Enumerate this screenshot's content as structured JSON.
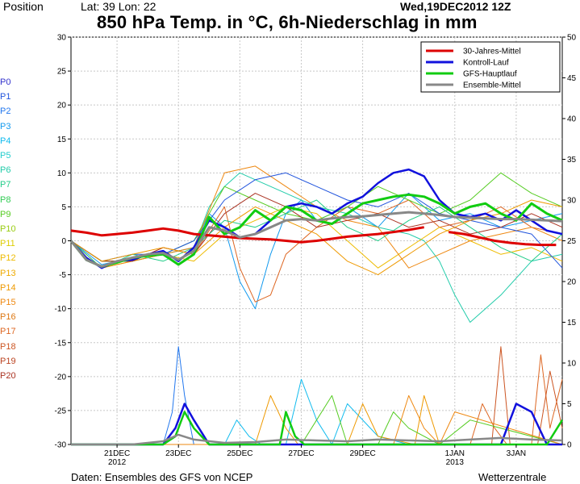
{
  "header": {
    "position_label": "Position",
    "coords": "Lat: 39 Lon: 22",
    "datetime": "Wed,19DEC2012 12Z",
    "title": "850 hPa Temp. in °C, 6h-Niederschlag in mm"
  },
  "footer": {
    "source": "Daten: Ensembles des GFS von NCEP",
    "brand": "Wetterzentrale"
  },
  "members": [
    {
      "label": "P0",
      "color": "#3333cc"
    },
    {
      "label": "P1",
      "color": "#2255dd"
    },
    {
      "label": "P2",
      "color": "#2277ee"
    },
    {
      "label": "P3",
      "color": "#1199ee"
    },
    {
      "label": "P4",
      "color": "#11bbee"
    },
    {
      "label": "P5",
      "color": "#22cccc"
    },
    {
      "label": "P6",
      "color": "#22ccaa"
    },
    {
      "label": "P7",
      "color": "#22cc88"
    },
    {
      "label": "P8",
      "color": "#33cc55"
    },
    {
      "label": "P9",
      "color": "#55cc22"
    },
    {
      "label": "P10",
      "color": "#99cc11"
    },
    {
      "label": "P11",
      "color": "#ddcc00"
    },
    {
      "label": "P12",
      "color": "#eebb00"
    },
    {
      "label": "P13",
      "color": "#eeaa00"
    },
    {
      "label": "P14",
      "color": "#ee9900"
    },
    {
      "label": "P15",
      "color": "#ee8811"
    },
    {
      "label": "P16",
      "color": "#dd7711"
    },
    {
      "label": "P17",
      "color": "#dd6622"
    },
    {
      "label": "P18",
      "color": "#cc5522"
    },
    {
      "label": "P19",
      "color": "#bb4422"
    },
    {
      "label": "P20",
      "color": "#aa3322"
    }
  ],
  "chart_data": {
    "type": "line",
    "x_unit": "days from 19DEC2012 12Z",
    "xlim": [
      0,
      16
    ],
    "x_ticks": [
      {
        "x": 1.5,
        "label": "21DEC",
        "sub": "2012"
      },
      {
        "x": 3.5,
        "label": "23DEC",
        "sub": ""
      },
      {
        "x": 5.5,
        "label": "25DEC",
        "sub": ""
      },
      {
        "x": 7.5,
        "label": "27DEC",
        "sub": ""
      },
      {
        "x": 9.5,
        "label": "29DEC",
        "sub": ""
      },
      {
        "x": 12.5,
        "label": "1JAN",
        "sub": "2013"
      },
      {
        "x": 14.5,
        "label": "3JAN",
        "sub": ""
      }
    ],
    "y_left_lim": [
      -30,
      30
    ],
    "y_left_ticks": [
      -30,
      -25,
      -20,
      -15,
      -10,
      -5,
      0,
      5,
      10,
      15,
      20,
      25,
      30
    ],
    "y_right_lim": [
      0,
      50
    ],
    "y_right_ticks": [
      0,
      5,
      10,
      15,
      20,
      25,
      30,
      35,
      40,
      45,
      50
    ],
    "grid": true,
    "legend_position": "top-right",
    "legend": [
      {
        "name": "30-Jahres-Mittel",
        "color": "#dd0000"
      },
      {
        "name": "Kontroll-Lauf",
        "color": "#1111dd"
      },
      {
        "name": "GFS-Hauptlauf",
        "color": "#11cc11"
      },
      {
        "name": "Ensemble-Mittel",
        "color": "#888888"
      }
    ],
    "series": [
      {
        "name": "30-Jahres-Mittel",
        "color": "#dd0000",
        "width": 3,
        "x": [
          0,
          0.5,
          1,
          1.5,
          2,
          2.5,
          3,
          3.5,
          4,
          4.5,
          5,
          5.5,
          6,
          6.5,
          7,
          7.5,
          8,
          8.5,
          9,
          9.5,
          10,
          10.5,
          11,
          11.5
        ],
        "y": [
          1.5,
          1.2,
          0.8,
          1.0,
          1.2,
          1.5,
          1.8,
          1.5,
          1.0,
          0.8,
          0.6,
          0.4,
          0.3,
          0.2,
          0.0,
          -0.2,
          0.0,
          0.3,
          0.6,
          0.8,
          1.0,
          1.3,
          1.6,
          2.0
        ]
      },
      {
        "name": "30-Jahres-Mittel",
        "color": "#dd0000",
        "width": 3,
        "x": [
          12.3,
          12.8,
          13.3,
          13.8,
          14.3,
          14.8,
          15.3,
          15.8
        ],
        "y": [
          1.3,
          1.0,
          0.5,
          0.0,
          -0.3,
          -0.5,
          -0.6,
          -0.6
        ]
      },
      {
        "name": "Kontroll-Lauf",
        "color": "#1111dd",
        "width": 2.5,
        "x": [
          0,
          0.5,
          1,
          1.5,
          2,
          2.5,
          3,
          3.5,
          4,
          4.5,
          5,
          5.5,
          6,
          6.5,
          7,
          7.5,
          8,
          8.5,
          9,
          9.5,
          10,
          10.5,
          11,
          11.5,
          12,
          12.5,
          13,
          13.5,
          14,
          14.5,
          15,
          15.5,
          16
        ],
        "y": [
          0,
          -2.5,
          -4.0,
          -3.0,
          -2.8,
          -2.0,
          -1.5,
          -3.0,
          -1.0,
          3.0,
          2.0,
          0.5,
          1.0,
          3.0,
          5.0,
          5.5,
          5.0,
          4.0,
          5.5,
          6.5,
          8.5,
          10.0,
          10.5,
          9.5,
          6.0,
          4.0,
          3.5,
          4.0,
          3.0,
          4.5,
          3.0,
          1.5,
          1.0
        ]
      },
      {
        "name": "GFS-Hauptlauf",
        "color": "#11cc11",
        "width": 3,
        "x": [
          0,
          0.5,
          1,
          1.5,
          2,
          2.5,
          3,
          3.5,
          4,
          4.5,
          5,
          5.5,
          6,
          6.5,
          7,
          7.5,
          8,
          8.5,
          9,
          9.5,
          10,
          10.5,
          11,
          11.5,
          12,
          12.5,
          13,
          13.5,
          14,
          14.5,
          15,
          15.5,
          16
        ],
        "y": [
          0,
          -2.8,
          -3.8,
          -3.2,
          -2.5,
          -2.2,
          -2.0,
          -3.5,
          -2.0,
          3.5,
          1.0,
          2.0,
          4.5,
          3.0,
          5.0,
          4.5,
          3.0,
          2.5,
          4.0,
          5.5,
          6.0,
          6.5,
          6.8,
          6.5,
          5.5,
          4.0,
          5.0,
          5.5,
          4.0,
          3.0,
          5.5,
          4.0,
          3.0
        ]
      },
      {
        "name": "Ensemble-Mittel",
        "color": "#888888",
        "width": 3,
        "x": [
          0,
          0.5,
          1,
          1.5,
          2,
          2.5,
          3,
          3.5,
          4,
          4.5,
          5,
          5.5,
          6,
          6.5,
          7,
          7.5,
          8,
          8.5,
          9,
          9.5,
          10,
          10.5,
          11,
          11.5,
          12,
          12.5,
          13,
          13.5,
          14,
          14.5,
          15,
          15.5,
          16
        ],
        "y": [
          0,
          -2.8,
          -3.8,
          -3.0,
          -2.5,
          -2.0,
          -1.8,
          -2.8,
          -1.5,
          2.0,
          1.5,
          0.5,
          1.0,
          2.0,
          3.0,
          3.2,
          3.0,
          3.3,
          3.5,
          3.6,
          3.8,
          4.0,
          4.2,
          4.0,
          3.8,
          3.5,
          3.4,
          3.3,
          3.2,
          3.2,
          3.1,
          3.0,
          2.9
        ]
      },
      {
        "name": "P3",
        "color": "#1199ee",
        "width": 1,
        "x": [
          0,
          1,
          2,
          3,
          4,
          4.5,
          5,
          5.5,
          6,
          6.5,
          7,
          7.5,
          8,
          9,
          10,
          11,
          12,
          13,
          14,
          15,
          16
        ],
        "y": [
          0,
          -3.5,
          -2.5,
          -2,
          -1,
          4,
          2,
          -6,
          -10,
          -2,
          4,
          6,
          3,
          5,
          2,
          7,
          3,
          4,
          2,
          3,
          4
        ]
      },
      {
        "name": "P6",
        "color": "#22ccaa",
        "width": 1,
        "x": [
          0,
          1,
          2,
          3,
          4,
          4.5,
          5,
          5.5,
          6,
          7,
          8,
          9,
          10,
          11,
          11.5,
          12,
          12.5,
          13,
          14,
          15,
          16
        ],
        "y": [
          0,
          -3,
          -3,
          -2,
          -1,
          5,
          8,
          10,
          9,
          7,
          5,
          4,
          2,
          1,
          0,
          -3,
          -8,
          -12,
          -8,
          -3,
          -2
        ]
      },
      {
        "name": "P17",
        "color": "#dd6622",
        "width": 1,
        "x": [
          0,
          1,
          2,
          3,
          4,
          5,
          5.5,
          6,
          6.5,
          7,
          8,
          9,
          10,
          11,
          12,
          13,
          14,
          15,
          16
        ],
        "y": [
          0,
          -3,
          -3,
          -1,
          -2,
          5,
          -4,
          -9,
          -8,
          -2,
          2,
          5,
          4,
          6,
          2,
          3,
          5,
          2,
          1
        ]
      },
      {
        "name": "P12",
        "color": "#eebb00",
        "width": 1,
        "x": [
          0,
          1,
          2,
          3,
          4,
          5,
          6,
          7,
          8,
          9,
          10,
          11,
          12,
          13,
          14,
          15,
          16
        ],
        "y": [
          0,
          -4,
          -3,
          -2,
          -3,
          1,
          3,
          5,
          4,
          0,
          -4,
          -1,
          2,
          0,
          -2,
          -1,
          -3
        ]
      },
      {
        "name": "P9",
        "color": "#55cc22",
        "width": 1,
        "x": [
          0,
          1,
          2,
          3,
          4,
          5,
          6,
          7,
          8,
          9,
          10,
          11,
          12,
          13,
          14,
          15,
          16
        ],
        "y": [
          0,
          -3,
          -3,
          -2,
          0,
          8,
          6,
          4,
          3,
          5,
          8,
          6,
          4,
          6,
          10,
          7,
          5
        ]
      },
      {
        "name": "P15",
        "color": "#ee8811",
        "width": 1,
        "x": [
          0,
          1,
          2,
          3,
          4,
          5,
          6,
          7,
          8,
          9,
          10,
          11,
          12,
          13,
          14,
          15,
          16
        ],
        "y": [
          0,
          -4,
          -3,
          -2,
          -1,
          10,
          11,
          8,
          5,
          3,
          2,
          -4,
          -2,
          0,
          1,
          2,
          0
        ]
      },
      {
        "name": "P1",
        "color": "#2255dd",
        "width": 1,
        "x": [
          0,
          1,
          2,
          3,
          4,
          5,
          6,
          7,
          8,
          9,
          10,
          11,
          12,
          13,
          14,
          15,
          16
        ],
        "y": [
          0,
          -3,
          -2,
          -2,
          0,
          6,
          9,
          10,
          8,
          6,
          5,
          7,
          4,
          3,
          2,
          1,
          -4
        ]
      },
      {
        "name": "P20",
        "color": "#aa3322",
        "width": 1,
        "x": [
          0,
          1,
          2,
          3,
          4,
          5,
          6,
          7,
          8,
          9,
          10,
          11,
          12,
          13,
          14,
          15,
          16
        ],
        "y": [
          0,
          -3,
          -3,
          -1,
          -2,
          4,
          7,
          5,
          2,
          3,
          4,
          2,
          3,
          1,
          2,
          4,
          2
        ]
      },
      {
        "name": "P7",
        "color": "#22cc88",
        "width": 1,
        "x": [
          0,
          1,
          2,
          3,
          4,
          5,
          6,
          7,
          8,
          9,
          10,
          11,
          12,
          13,
          14,
          15,
          16
        ],
        "y": [
          0,
          -4,
          -2,
          -3,
          -1,
          3,
          2,
          4,
          6,
          2,
          0,
          3,
          5,
          2,
          -1,
          -3,
          1
        ]
      },
      {
        "name": "P14",
        "color": "#ee9900",
        "width": 1,
        "x": [
          0,
          1,
          2,
          3,
          4,
          5,
          6,
          7,
          8,
          9,
          10,
          11,
          12,
          13,
          14,
          15,
          16
        ],
        "y": [
          0,
          -3,
          -2,
          -1,
          -2,
          2,
          5,
          3,
          1,
          -3,
          -5,
          -2,
          1,
          3,
          4,
          6,
          5
        ]
      }
    ],
    "precip_series": [
      {
        "name": "Kontroll-Lauf",
        "color": "#1111dd",
        "width": 2.5,
        "x": [
          0,
          3,
          3.4,
          3.7,
          4,
          4.5,
          9,
          13,
          14,
          14.5,
          15,
          15.5,
          16
        ],
        "y": [
          0,
          0,
          2,
          5,
          3,
          0,
          0,
          0,
          0,
          5,
          4,
          0,
          0
        ]
      },
      {
        "name": "GFS-Hauptlauf",
        "color": "#11cc11",
        "width": 2.5,
        "x": [
          0,
          3,
          3.4,
          3.7,
          4,
          4.5,
          6,
          6.8,
          7,
          7.3,
          7.6,
          8,
          12,
          15.5,
          16
        ],
        "y": [
          0,
          0,
          1,
          4,
          2,
          0,
          0,
          0,
          4,
          1,
          0,
          0,
          0,
          0,
          3
        ]
      },
      {
        "name": "Ensemble-Mittel",
        "color": "#888888",
        "width": 2.5,
        "x": [
          0,
          2,
          3,
          3.5,
          4,
          5,
          6,
          7,
          8,
          9,
          10,
          11,
          12,
          13,
          14,
          15,
          16
        ],
        "y": [
          0,
          0,
          0.4,
          1.2,
          0.6,
          0.2,
          0.3,
          0.6,
          0.5,
          0.4,
          0.6,
          0.5,
          0.4,
          0.6,
          0.8,
          0.6,
          0.5
        ]
      },
      {
        "name": "P2",
        "color": "#2277ee",
        "width": 1,
        "x": [
          0,
          3,
          3.3,
          3.5,
          3.7,
          4,
          12,
          16
        ],
        "y": [
          0,
          0,
          4,
          12,
          6,
          0,
          0,
          0
        ]
      },
      {
        "name": "P17",
        "color": "#dd6622",
        "width": 1,
        "x": [
          0,
          13,
          13.4,
          13.8,
          14.2,
          15,
          15.3,
          15.6,
          16
        ],
        "y": [
          0,
          0,
          5,
          2,
          0,
          0,
          11,
          2,
          8
        ]
      },
      {
        "name": "P18",
        "color": "#cc5522",
        "width": 1,
        "x": [
          0,
          13.7,
          14.0,
          14.3,
          15.2,
          15.6,
          16
        ],
        "y": [
          0,
          0,
          12,
          0,
          0,
          9,
          2
        ]
      },
      {
        "name": "P4",
        "color": "#11bbee",
        "width": 1,
        "x": [
          0,
          5,
          5.4,
          5.8,
          6.2,
          7,
          7.5,
          8,
          8.5,
          9,
          10,
          11,
          16
        ],
        "y": [
          0,
          0,
          3,
          1,
          0,
          0,
          8,
          3,
          0,
          5,
          1,
          0,
          0
        ]
      },
      {
        "name": "P14",
        "color": "#ee9900",
        "width": 1,
        "x": [
          0,
          6,
          6.5,
          7,
          7.4,
          8,
          9,
          9.5,
          10,
          11.2,
          11.5,
          12,
          16
        ],
        "y": [
          0,
          0,
          6,
          2,
          0,
          0,
          0,
          5,
          1,
          0,
          6,
          0,
          0
        ]
      },
      {
        "name": "P9",
        "color": "#55cc22",
        "width": 1,
        "x": [
          0,
          7.5,
          8,
          8.5,
          9,
          10,
          10.5,
          11,
          12,
          13,
          16
        ],
        "y": [
          0,
          0,
          3,
          6,
          0,
          0,
          4,
          2,
          0,
          3,
          0
        ]
      },
      {
        "name": "P15",
        "color": "#ee8811",
        "width": 1,
        "x": [
          0,
          10.5,
          11,
          11.5,
          12,
          12.5,
          16
        ],
        "y": [
          0,
          0,
          6,
          2,
          0,
          4,
          0
        ]
      }
    ]
  }
}
